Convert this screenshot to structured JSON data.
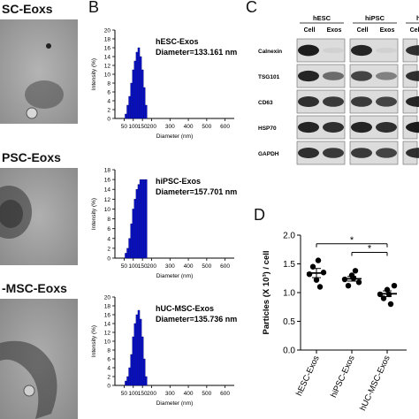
{
  "panels": {
    "b": "B",
    "c": "C",
    "d": "D"
  },
  "em_labels": [
    "SC-Eoxs",
    "PSC-Eoxs",
    "-MSC-Eoxs"
  ],
  "colors": {
    "bar": "#0a12c8",
    "bar_edge": "#05086e",
    "dots": "#000000",
    "blot_band": "#111111",
    "blot_bg": "#dcdcdc",
    "em_bg": "#a9a9a9"
  },
  "chart_data": [
    {
      "type": "bar",
      "title": "hESC-Exos",
      "subtitle": "Diameter=133.161 nm",
      "xlabel": "Diameter (nm)",
      "ylabel": "Intensity (%)",
      "ylim": [
        0,
        20
      ],
      "yticks": [
        "0",
        "2",
        "4",
        "6",
        "8",
        "10",
        "12",
        "14",
        "16",
        "18",
        "20"
      ],
      "xticks": [
        "50",
        "100",
        "150",
        "200",
        "300",
        "400",
        "500",
        "600"
      ],
      "xlim": [
        0,
        650
      ],
      "bin_width": 10,
      "x": [
        60,
        70,
        80,
        90,
        100,
        110,
        120,
        130,
        140,
        150,
        160,
        170
      ],
      "values": [
        1,
        3,
        5,
        8,
        11,
        13,
        15,
        16,
        14,
        11,
        7,
        3
      ],
      "grid": false
    },
    {
      "type": "bar",
      "title": "hiPSC-Exos",
      "subtitle": "Diameter=157.701 nm",
      "xlabel": "Diameter (nm)",
      "ylabel": "Intensity (%)",
      "ylim": [
        0,
        18
      ],
      "yticks": [
        "0",
        "2",
        "4",
        "6",
        "8",
        "10",
        "12",
        "14",
        "16",
        "18"
      ],
      "xticks": [
        "50",
        "100",
        "150",
        "200",
        "300",
        "400",
        "500",
        "600"
      ],
      "xlim": [
        0,
        650
      ],
      "bin_width": 10,
      "x": [
        60,
        70,
        80,
        90,
        100,
        110,
        120,
        130,
        140,
        150,
        160,
        170
      ],
      "values": [
        1,
        2,
        4,
        7,
        10,
        12,
        14,
        15,
        16,
        16,
        16,
        16
      ],
      "grid": false
    },
    {
      "type": "bar",
      "title": "hUC-MSC-Exos",
      "subtitle": "Diameter=135.736 nm",
      "xlabel": "Diameter (nm)",
      "ylabel": "Intensity (%)",
      "ylim": [
        0,
        20
      ],
      "yticks": [
        "0",
        "2",
        "4",
        "6",
        "8",
        "10",
        "12",
        "14",
        "16",
        "18",
        "20"
      ],
      "xticks": [
        "50",
        "100",
        "150",
        "200",
        "300",
        "400",
        "500",
        "600"
      ],
      "xlim": [
        0,
        650
      ],
      "bin_width": 10,
      "x": [
        60,
        70,
        80,
        90,
        100,
        110,
        120,
        130,
        140,
        150,
        160,
        170
      ],
      "values": [
        1,
        2,
        4,
        7,
        11,
        14,
        16,
        17,
        15,
        11,
        6,
        2
      ],
      "grid": false
    },
    {
      "type": "scatter",
      "ylabel": "Particles (X 10³) / cell",
      "ylim": [
        0.0,
        2.0
      ],
      "yticks": [
        "0.0",
        "0.5",
        "1.0",
        "1.5",
        "2.0"
      ],
      "categories": [
        "hESC-Exos",
        "hiPSC-Exos",
        "hUC-MSC-Exos"
      ],
      "points": [
        [
          1.32,
          1.45,
          1.22,
          1.1,
          1.35,
          1.56
        ],
        [
          1.23,
          1.12,
          1.3,
          1.38,
          1.18,
          1.25
        ],
        [
          0.97,
          0.9,
          1.05,
          0.8,
          1.12,
          0.97
        ]
      ],
      "means": [
        1.34,
        1.24,
        0.98
      ],
      "sem": [
        0.08,
        0.04,
        0.05
      ],
      "significance": [
        {
          "from": 0,
          "to": 2,
          "label": "*"
        },
        {
          "from": 1,
          "to": 2,
          "label": "*"
        }
      ],
      "grid": false
    }
  ],
  "blot": {
    "groups": [
      "hESC",
      "hiPSC",
      "hUC-"
    ],
    "lanes": [
      "Cell",
      "Exos",
      "Cell",
      "Exos",
      "Cell"
    ],
    "rows": [
      {
        "label": "Calnexin",
        "intensity": [
          0.95,
          0.05,
          0.9,
          0.05,
          0.85
        ]
      },
      {
        "label": "TSG101",
        "intensity": [
          0.9,
          0.55,
          0.75,
          0.45,
          0.85
        ]
      },
      {
        "label": "CD63",
        "intensity": [
          0.85,
          0.8,
          0.8,
          0.75,
          0.9
        ]
      },
      {
        "label": "HSP70",
        "intensity": [
          0.9,
          0.85,
          0.9,
          0.85,
          0.95
        ]
      },
      {
        "label": "GAPDH",
        "intensity": [
          0.85,
          0.8,
          0.8,
          0.75,
          0.85
        ]
      }
    ]
  }
}
